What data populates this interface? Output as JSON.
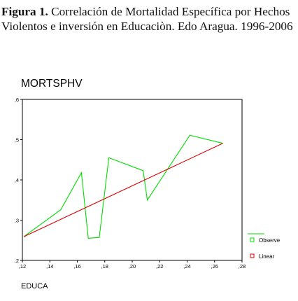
{
  "caption": {
    "label": "Figura 1.",
    "text": "Correlación de Mortalidad Específica por Hechos Violentos e inversión en Educaciòn. Edo Aragua. 1996-2006"
  },
  "chart_data": {
    "type": "line",
    "ylabel": "MORTSPHV",
    "xlabel": "EDUCA",
    "xlim": [
      0.12,
      0.28
    ],
    "ylim": [
      0.2,
      0.6
    ],
    "x_ticks": [
      0.12,
      0.14,
      0.16,
      0.18,
      0.2,
      0.22,
      0.24,
      0.26,
      0.28
    ],
    "x_tick_labels": [
      ",12",
      ",14",
      ",16",
      ",18",
      ",20",
      ",22",
      ",24",
      ",26",
      ",28"
    ],
    "y_ticks": [
      0.2,
      0.3,
      0.4,
      0.5,
      0.6
    ],
    "y_tick_labels": [
      ",2",
      ",3",
      ",4",
      ",5",
      ",6"
    ],
    "grid": false,
    "legend_position": "right",
    "series": [
      {
        "name": "Observe",
        "color": "#00dd00",
        "marker": "square-open",
        "points": [
          [
            0.121,
            0.259
          ],
          [
            0.148,
            0.326
          ],
          [
            0.163,
            0.418
          ],
          [
            0.168,
            0.255
          ],
          [
            0.176,
            0.257
          ],
          [
            0.183,
            0.455
          ],
          [
            0.208,
            0.423
          ],
          [
            0.211,
            0.35
          ],
          [
            0.242,
            0.511
          ],
          [
            0.266,
            0.491
          ]
        ]
      },
      {
        "name": "Linear",
        "color": "#dd0000",
        "marker": "square-open",
        "points": [
          [
            0.121,
            0.259
          ],
          [
            0.266,
            0.491
          ]
        ]
      }
    ]
  }
}
